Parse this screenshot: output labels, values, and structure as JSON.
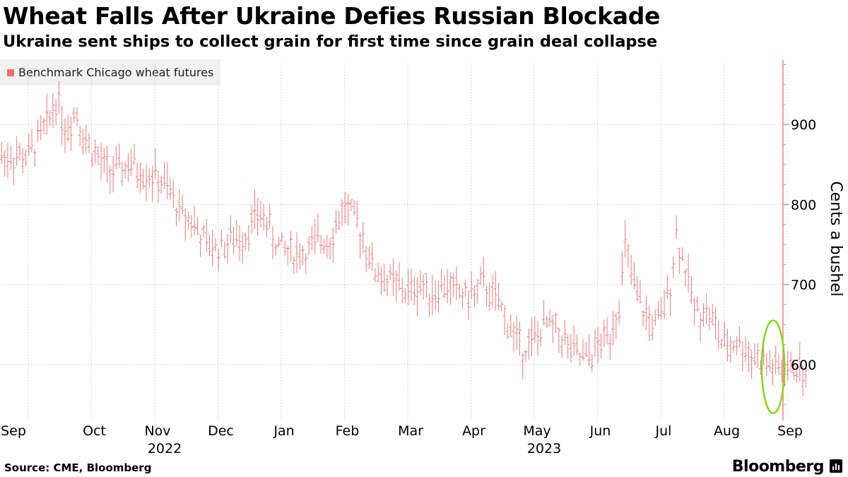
{
  "header": {
    "title": "Wheat Falls After Ukraine Defies Russian Blockade",
    "subtitle": "Ukraine sent ships to collect grain for first time since grain deal collapse"
  },
  "footer": {
    "source": "Source: CME, Bloomberg",
    "brand": "Bloomberg"
  },
  "colors": {
    "series": "#e77a7a",
    "axis": "#f08080",
    "highlight": "#88d41c",
    "grid": "#cfcfcf"
  },
  "chart_data": {
    "type": "bar",
    "subtype": "ohlc",
    "title": "Wheat Falls After Ukraine Defies Russian Blockade",
    "legend": [
      {
        "name": "Benchmark Chicago wheat futures",
        "position": "top-left"
      }
    ],
    "ylabel": "Cents a bushel",
    "ylim": [
      530,
      985
    ],
    "yticks": [
      600,
      700,
      800,
      900
    ],
    "xlim": [
      0,
      12.45
    ],
    "month_labels": [
      "Sep",
      "Oct",
      "Nov",
      "Dec",
      "Jan",
      "Feb",
      "Mar",
      "Apr",
      "May",
      "Jun",
      "Jul",
      "Aug",
      "Sep"
    ],
    "year_labels": [
      {
        "text": "2022",
        "month_index": 2
      },
      {
        "text": "2023",
        "month_index": 8
      }
    ],
    "annotation": {
      "type": "ellipse",
      "description": "circled latest September prices",
      "x_center": 12.0,
      "x_radius": 0.18,
      "y_center": 597,
      "y_radius": 58
    },
    "series": [
      {
        "name": "Benchmark Chicago wheat futures",
        "monthly_anchors": [
          [
            0.0,
            860
          ],
          [
            0.15,
            880
          ],
          [
            0.3,
            900
          ],
          [
            0.45,
            935
          ],
          [
            0.6,
            890
          ],
          [
            0.75,
            920
          ],
          [
            0.9,
            880
          ],
          [
            1.0,
            870
          ],
          [
            1.2,
            845
          ],
          [
            1.4,
            840
          ],
          [
            1.6,
            850
          ],
          [
            1.7,
            845
          ],
          [
            2.0,
            835
          ],
          [
            2.2,
            820
          ],
          [
            2.4,
            790
          ],
          [
            2.6,
            780
          ],
          [
            2.8,
            750
          ],
          [
            3.0,
            745
          ],
          [
            3.2,
            755
          ],
          [
            3.4,
            760
          ],
          [
            3.6,
            785
          ],
          [
            3.75,
            785
          ],
          [
            3.85,
            760
          ],
          [
            4.0,
            745
          ],
          [
            4.2,
            740
          ],
          [
            4.4,
            740
          ],
          [
            4.6,
            755
          ],
          [
            4.8,
            760
          ],
          [
            4.95,
            790
          ],
          [
            5.0,
            800
          ],
          [
            5.15,
            780
          ],
          [
            5.3,
            760
          ],
          [
            5.45,
            720
          ],
          [
            5.6,
            710
          ],
          [
            6.0,
            690
          ],
          [
            6.2,
            700
          ],
          [
            6.4,
            690
          ],
          [
            6.6,
            700
          ],
          [
            6.8,
            690
          ],
          [
            7.0,
            685
          ],
          [
            7.2,
            700
          ],
          [
            7.4,
            680
          ],
          [
            7.6,
            650
          ],
          [
            7.8,
            620
          ],
          [
            8.0,
            630
          ],
          [
            8.2,
            650
          ],
          [
            8.4,
            640
          ],
          [
            8.6,
            615
          ],
          [
            8.8,
            605
          ],
          [
            9.0,
            620
          ],
          [
            9.2,
            640
          ],
          [
            9.35,
            680
          ],
          [
            9.45,
            755
          ],
          [
            9.55,
            700
          ],
          [
            9.7,
            670
          ],
          [
            9.85,
            650
          ],
          [
            10.0,
            655
          ],
          [
            10.15,
            700
          ],
          [
            10.25,
            765
          ],
          [
            10.4,
            715
          ],
          [
            10.55,
            665
          ],
          [
            10.7,
            670
          ],
          [
            10.85,
            650
          ],
          [
            11.0,
            620
          ],
          [
            11.2,
            630
          ],
          [
            11.4,
            615
          ],
          [
            11.6,
            605
          ],
          [
            11.8,
            595
          ],
          [
            12.0,
            590
          ],
          [
            12.15,
            600
          ],
          [
            12.3,
            583
          ]
        ]
      }
    ]
  }
}
